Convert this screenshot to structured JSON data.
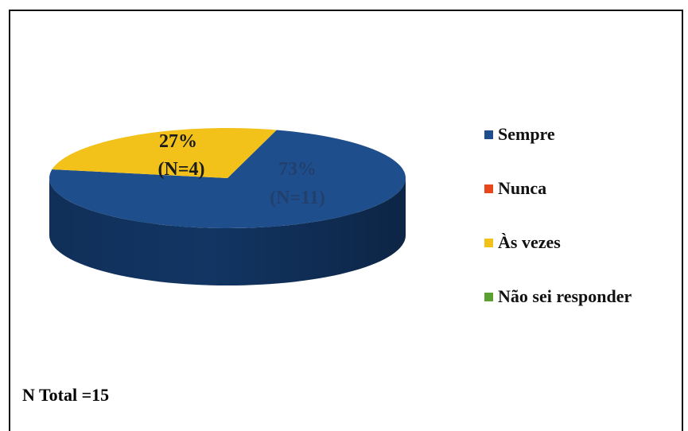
{
  "chart_data": {
    "type": "pie",
    "view": "3d",
    "categories": [
      "Sempre",
      "Nunca",
      "Às vezes",
      "Não sei responder"
    ],
    "values": [
      11,
      0,
      4,
      0
    ],
    "percentages": [
      73,
      0,
      27,
      0
    ],
    "data_labels": [
      {
        "category": "Sempre",
        "percent_text": "73%",
        "count_text": "(N=11)"
      },
      {
        "category": "Às vezes",
        "percent_text": "27%",
        "count_text": "(N=4)"
      }
    ],
    "legend": {
      "position": "right",
      "entries": [
        {
          "label": "Sempre",
          "color": "#1F4E8C"
        },
        {
          "label": "Nunca",
          "color": "#E8471E"
        },
        {
          "label": "Às vezes",
          "color": "#F2C21B"
        },
        {
          "label": "Não sei responder",
          "color": "#5BA033"
        }
      ]
    },
    "colors": {
      "Sempre": "#1F4E8C",
      "Sempre_side": "#123563",
      "Às vezes": "#F2C21B",
      "Às vezes_side": "#B58D0E",
      "label_sempre": "#22406E",
      "label_asvezes": "#1B1B1B"
    }
  },
  "footer": {
    "total_text": "N Total =15"
  }
}
